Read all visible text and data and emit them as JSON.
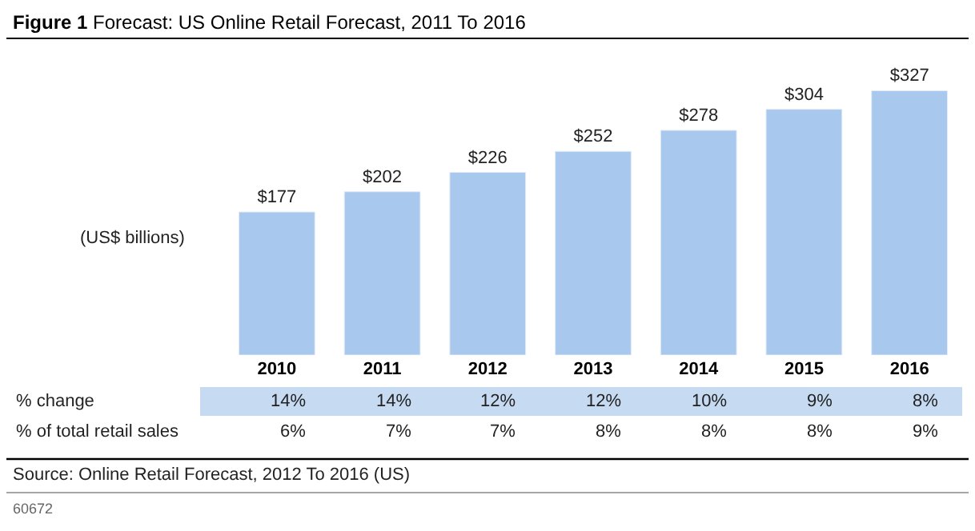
{
  "chart_data": {
    "type": "bar",
    "title": "Figure 1 Forecast: US Online Retail Forecast, 2011 To 2016",
    "ylabel": "(US$ billions)",
    "categories": [
      "2010",
      "2011",
      "2012",
      "2013",
      "2014",
      "2015",
      "2016"
    ],
    "values": [
      177,
      202,
      226,
      252,
      278,
      304,
      327
    ],
    "value_labels": [
      "$177",
      "$202",
      "$226",
      "$252",
      "$278",
      "$304",
      "$327"
    ],
    "color": "#a9c8ee",
    "annotations": [
      "% change",
      "14%",
      "14%",
      "12%",
      "12%",
      "10%",
      "9%",
      "8%",
      "% of total retail sales",
      "6%",
      "7%",
      "7%",
      "8%",
      "8%",
      "8%",
      "9%",
      "Source: Online Retail Forecast, 2012 To 2016 (US)",
      "60672"
    ]
  }
}
